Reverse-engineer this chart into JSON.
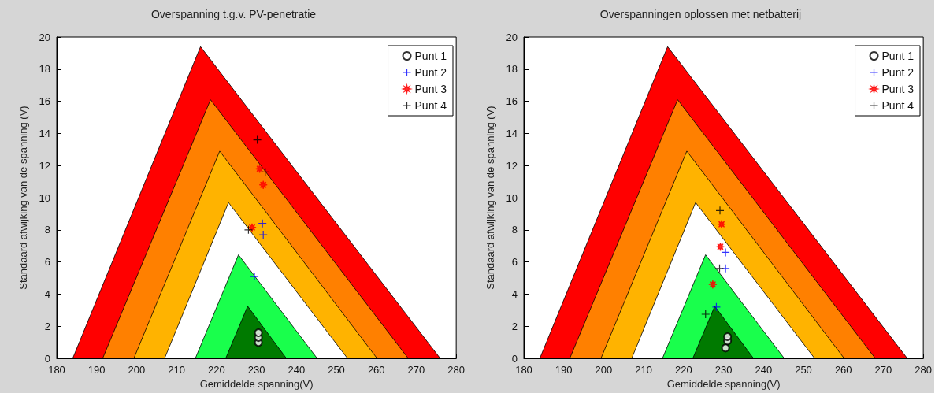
{
  "chart_data": [
    {
      "type": "scatter",
      "title": "Overspanning t.g.v. PV-penetratie",
      "xlabel": "Gemiddelde spanning(V)",
      "ylabel": "Standaard afwijking van de spanning (V)",
      "xlim": [
        180,
        280
      ],
      "xticks": [
        180,
        190,
        200,
        210,
        220,
        230,
        240,
        250,
        260,
        270,
        280
      ],
      "ylim": [
        0,
        20
      ],
      "yticks": [
        0,
        2,
        4,
        6,
        8,
        10,
        12,
        14,
        16,
        18,
        20
      ],
      "grid": false,
      "legend": "top right",
      "series": [
        {
          "type": "area",
          "color": "#ff0000",
          "x": [
            184,
            216,
            276
          ],
          "values": [
            0,
            19.4,
            0
          ]
        },
        {
          "type": "area",
          "color": "#ff8000",
          "x": [
            191.5,
            218.5,
            268
          ],
          "values": [
            0,
            16.1,
            0
          ]
        },
        {
          "type": "area",
          "color": "#ffb300",
          "x": [
            199.3,
            220.8,
            260.2
          ],
          "values": [
            0,
            12.9,
            0
          ]
        },
        {
          "type": "area",
          "color": "#ffffff",
          "x": [
            207,
            223,
            252.8
          ],
          "values": [
            0,
            9.7,
            0
          ]
        },
        {
          "type": "area",
          "color": "#19ff4c",
          "x": [
            214.7,
            225.5,
            245.2
          ],
          "values": [
            0,
            6.45,
            0
          ]
        },
        {
          "type": "area",
          "color": "#007a00",
          "x": [
            222.3,
            227.8,
            237.5
          ],
          "values": [
            0,
            3.25,
            0
          ]
        },
        {
          "name": "Punt 1",
          "color": "#000000",
          "marker": "circle",
          "x": [
            230.5,
            230.5,
            230.5
          ],
          "values": [
            1.0,
            1.3,
            1.6
          ]
        },
        {
          "name": "Punt 2",
          "color": "#0000ff",
          "marker": "cross",
          "x": [
            231.5,
            231.7,
            229.5
          ],
          "values": [
            8.4,
            7.7,
            5.1
          ]
        },
        {
          "name": "Punt 3",
          "color": "#ff0000",
          "marker": "star",
          "x": [
            230.8,
            231.7,
            228.9
          ],
          "values": [
            11.8,
            10.8,
            8.15
          ]
        },
        {
          "name": "Punt 4",
          "color": "#000000",
          "marker": "cross",
          "x": [
            230.2,
            232.2,
            228
          ],
          "values": [
            13.6,
            11.6,
            8.0
          ]
        }
      ]
    },
    {
      "type": "scatter",
      "title": "Overspanningen oplossen met netbatterij",
      "xlabel": "Gemiddelde spanning(V)",
      "ylabel": "Standaard afwijking van de spanning (V)",
      "xlim": [
        180,
        280
      ],
      "xticks": [
        180,
        190,
        200,
        210,
        220,
        230,
        240,
        250,
        260,
        270,
        280
      ],
      "ylim": [
        0,
        20
      ],
      "yticks": [
        0,
        2,
        4,
        6,
        8,
        10,
        12,
        14,
        16,
        18,
        20
      ],
      "grid": false,
      "legend": "top right",
      "series": [
        {
          "type": "area",
          "color": "#ff0000",
          "x": [
            184,
            216,
            276
          ],
          "values": [
            0,
            19.4,
            0
          ]
        },
        {
          "type": "area",
          "color": "#ff8000",
          "x": [
            191.5,
            218.5,
            268
          ],
          "values": [
            0,
            16.1,
            0
          ]
        },
        {
          "type": "area",
          "color": "#ffb300",
          "x": [
            199.3,
            220.8,
            260.2
          ],
          "values": [
            0,
            12.9,
            0
          ]
        },
        {
          "type": "area",
          "color": "#ffffff",
          "x": [
            207,
            223,
            252.8
          ],
          "values": [
            0,
            9.7,
            0
          ]
        },
        {
          "type": "area",
          "color": "#19ff4c",
          "x": [
            214.7,
            225.5,
            245.2
          ],
          "values": [
            0,
            6.45,
            0
          ]
        },
        {
          "type": "area",
          "color": "#007a00",
          "x": [
            222.3,
            227.8,
            237.5
          ],
          "values": [
            0,
            3.25,
            0
          ]
        },
        {
          "name": "Punt 1",
          "color": "#000000",
          "marker": "circle",
          "x": [
            230.5,
            231,
            231
          ],
          "values": [
            0.65,
            1.1,
            1.35
          ]
        },
        {
          "name": "Punt 2",
          "color": "#0000ff",
          "marker": "cross",
          "x": [
            230.5,
            230.5,
            228.2
          ],
          "values": [
            6.6,
            5.6,
            3.2
          ]
        },
        {
          "name": "Punt 3",
          "color": "#ff0000",
          "marker": "star",
          "x": [
            229.5,
            229.2,
            227.3
          ],
          "values": [
            8.35,
            6.95,
            4.6
          ]
        },
        {
          "name": "Punt 4",
          "color": "#000000",
          "marker": "cross",
          "x": [
            229.1,
            229,
            225.5
          ],
          "values": [
            9.2,
            5.6,
            2.75
          ]
        }
      ]
    }
  ]
}
